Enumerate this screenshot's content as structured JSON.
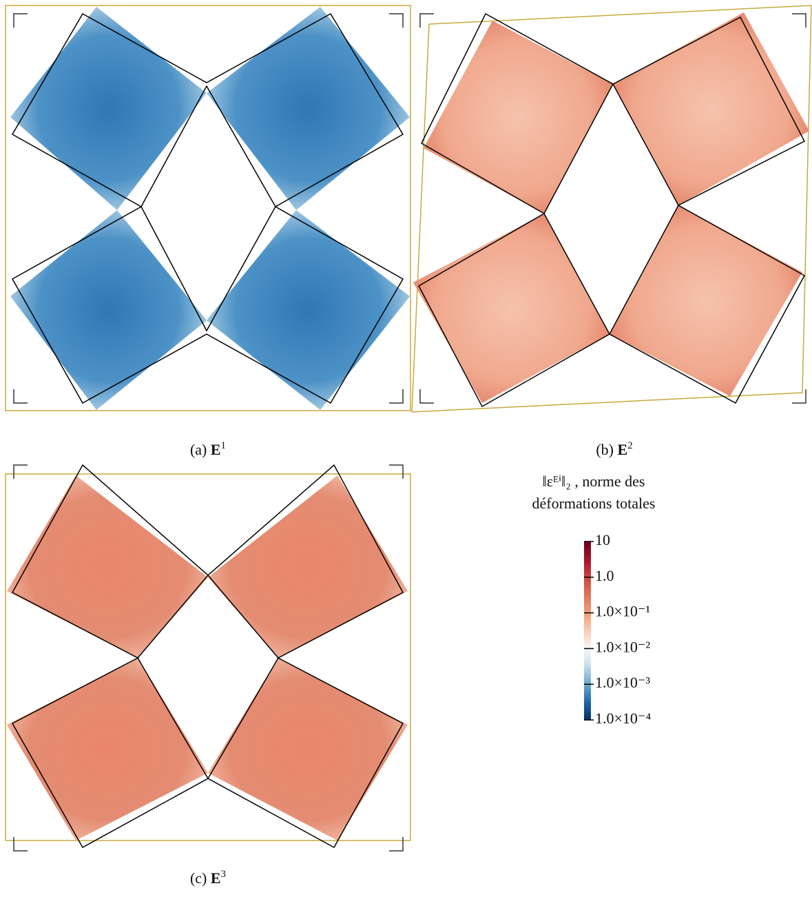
{
  "figures": [
    {
      "label": "(a)",
      "symbol": "E",
      "exponent": "1"
    },
    {
      "label": "(b)",
      "symbol": "E",
      "exponent": "2"
    },
    {
      "label": "(c)",
      "symbol": "E",
      "exponent": "3"
    }
  ],
  "colorbar": {
    "title": [
      "‖εᴱⁱ‖₂ , norme des",
      "déformations totales"
    ],
    "scale": "log",
    "lim": [
      0.0001,
      10
    ],
    "ticks": [
      {
        "value": 10,
        "label": "10"
      },
      {
        "value": 1,
        "label": "1.0"
      },
      {
        "value": 0.1,
        "label": "1.0×10⁻¹"
      },
      {
        "value": 0.01,
        "label": "1.0×10⁻²"
      },
      {
        "value": 0.001,
        "label": "1.0×10⁻³"
      },
      {
        "value": 0.0001,
        "label": "1.0×10⁻⁴"
      }
    ]
  }
}
